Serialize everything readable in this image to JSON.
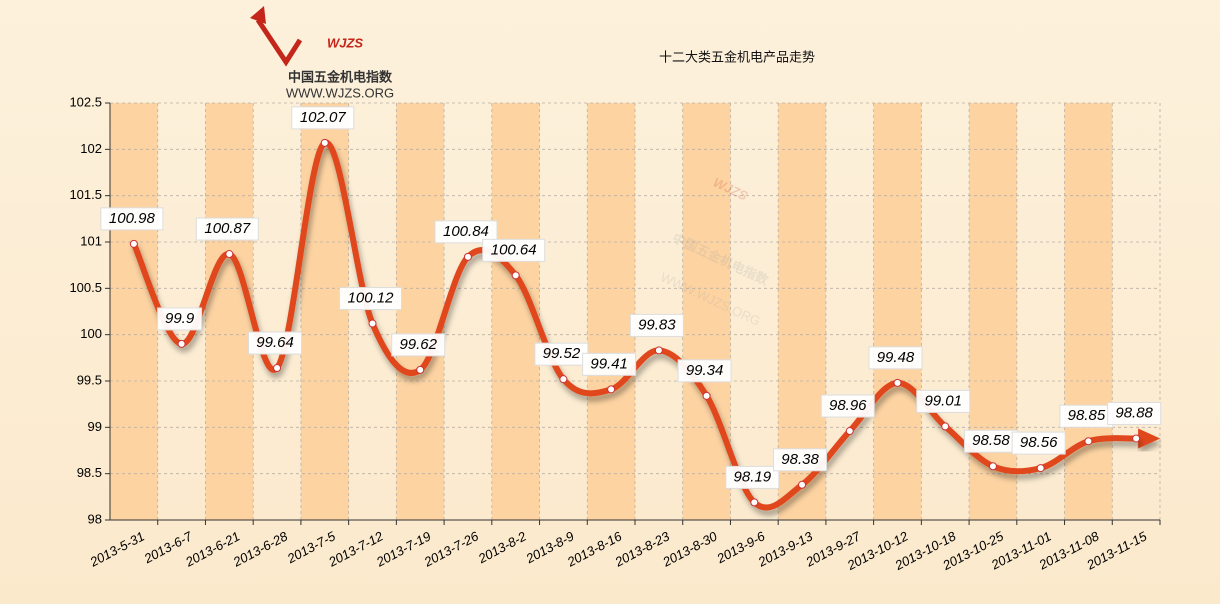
{
  "chart_data": {
    "type": "line",
    "title": "十二大类五金机电产品走势",
    "logo": {
      "mark": "WJZS",
      "name": "中国五金机电指数",
      "url": "WWW.WJZS.ORG"
    },
    "categories": [
      "2013-5-31",
      "2013-6-7",
      "2013-6-21",
      "2013-6-28",
      "2013-7-5",
      "2013-7-12",
      "2013-7-19",
      "2013-7-26",
      "2013-8-2",
      "2013-8-9",
      "2013-8-16",
      "2013-8-23",
      "2013-8-30",
      "2013-9-6",
      "2013-9-13",
      "2013-9-27",
      "2013-10-12",
      "2013-10-18",
      "2013-10-25",
      "2013-11-01",
      "2013-11-08",
      "2013-11-15"
    ],
    "series": [
      {
        "color": "#e0461a",
        "values": [
          100.98,
          99.9,
          100.87,
          99.64,
          102.07,
          100.12,
          99.62,
          100.84,
          100.64,
          99.52,
          99.41,
          99.83,
          99.34,
          98.19,
          98.38,
          98.96,
          99.48,
          99.01,
          98.58,
          98.56,
          98.85,
          98.88
        ]
      }
    ],
    "ylim": [
      98,
      102.5
    ],
    "yticks": [
      98,
      98.5,
      99,
      99.5,
      100,
      100.5,
      101,
      101.5,
      102,
      102.5
    ],
    "grid": true,
    "band_color": "#fdd3a2"
  }
}
